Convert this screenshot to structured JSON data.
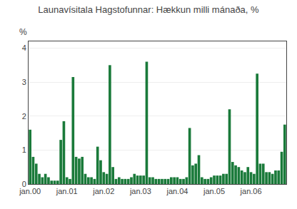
{
  "chart_data": {
    "type": "bar",
    "title": "Launavísitala Hagstofunnar: Hækkun milli mánaða, %",
    "y_label": "%",
    "categories": [
      "jan.00",
      null,
      null,
      null,
      null,
      null,
      null,
      null,
      null,
      null,
      null,
      null,
      "jan.01",
      null,
      null,
      null,
      null,
      null,
      null,
      null,
      null,
      null,
      null,
      null,
      "jan.02",
      null,
      null,
      null,
      null,
      null,
      null,
      null,
      null,
      null,
      null,
      null,
      "jan.03",
      null,
      null,
      null,
      null,
      null,
      null,
      null,
      null,
      null,
      null,
      null,
      "jan.04",
      null,
      null,
      null,
      null,
      null,
      null,
      null,
      null,
      null,
      null,
      null,
      "jan.05",
      null,
      null,
      null,
      null,
      null,
      null,
      null,
      null,
      null,
      null,
      null,
      "jan.06",
      null,
      null,
      null,
      null,
      null,
      null,
      null,
      null,
      null,
      null,
      null
    ],
    "values": [
      1.6,
      0.8,
      0.6,
      0.3,
      0.2,
      0.3,
      0.2,
      0.1,
      0.1,
      0.1,
      1.3,
      1.85,
      0.2,
      0.15,
      3.15,
      0.8,
      0.75,
      0.8,
      0.3,
      0.2,
      0.2,
      0.15,
      1.1,
      0.7,
      0.35,
      0.3,
      3.5,
      0.5,
      0.15,
      0.2,
      0.15,
      0.15,
      0.15,
      0.2,
      0.3,
      0.25,
      0.25,
      0.25,
      3.6,
      0.2,
      0.2,
      0.15,
      0.15,
      0.15,
      0.15,
      0.15,
      0.2,
      0.2,
      0.2,
      0.15,
      0.15,
      0.2,
      1.65,
      0.55,
      0.6,
      0.85,
      0.2,
      0.15,
      0.15,
      0.2,
      0.25,
      0.25,
      0.25,
      0.3,
      0.3,
      2.2,
      0.65,
      0.55,
      0.5,
      0.4,
      0.35,
      0.5,
      0.35,
      0.3,
      3.25,
      0.6,
      0.6,
      0.35,
      0.35,
      0.3,
      0.4,
      0.4,
      0.95,
      1.75
    ],
    "color": "#1A7A3A",
    "ylim": [
      0,
      4.2
    ],
    "yticks": [
      0,
      1,
      2,
      3,
      4
    ],
    "grid": true
  }
}
